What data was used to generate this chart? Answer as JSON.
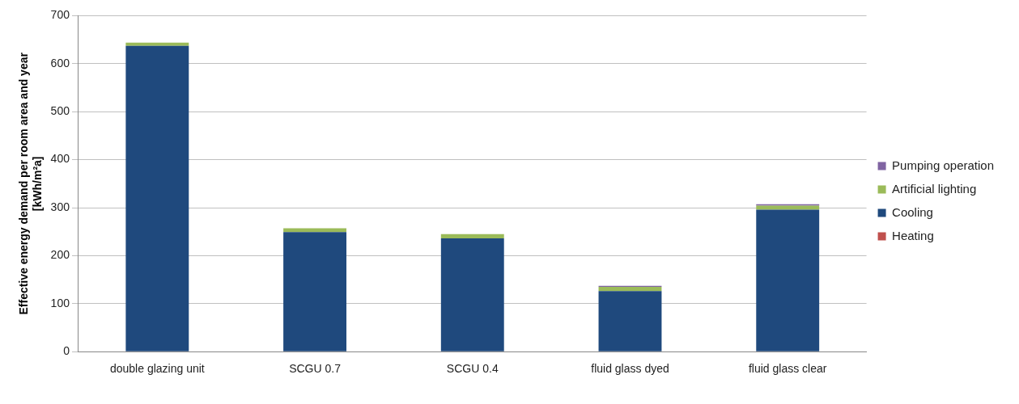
{
  "chart_data": {
    "type": "bar",
    "stacked": true,
    "ylabel": "Effective energy demand per room area and year\n[kWh/m²a]",
    "categories": [
      "double glazing unit",
      "SCGU 0.7",
      "SCGU 0.4",
      "fluid glass dyed",
      "fluid glass clear"
    ],
    "series": [
      {
        "name": "Heating",
        "color": "#c0504d",
        "values": [
          0,
          0,
          0,
          0,
          0
        ]
      },
      {
        "name": "Cooling",
        "color": "#1f497d",
        "values": [
          637,
          249,
          236,
          126,
          296
        ]
      },
      {
        "name": "Artificial lighting",
        "color": "#9bbb59",
        "values": [
          7,
          8,
          9,
          9,
          8
        ]
      },
      {
        "name": "Pumping operation",
        "color": "#8064a2",
        "values": [
          0,
          0,
          0,
          2,
          3
        ]
      }
    ],
    "ylim": [
      0,
      700
    ],
    "yticks": [
      0,
      100,
      200,
      300,
      400,
      500,
      600,
      700
    ],
    "grid": "y",
    "legend": "right"
  }
}
